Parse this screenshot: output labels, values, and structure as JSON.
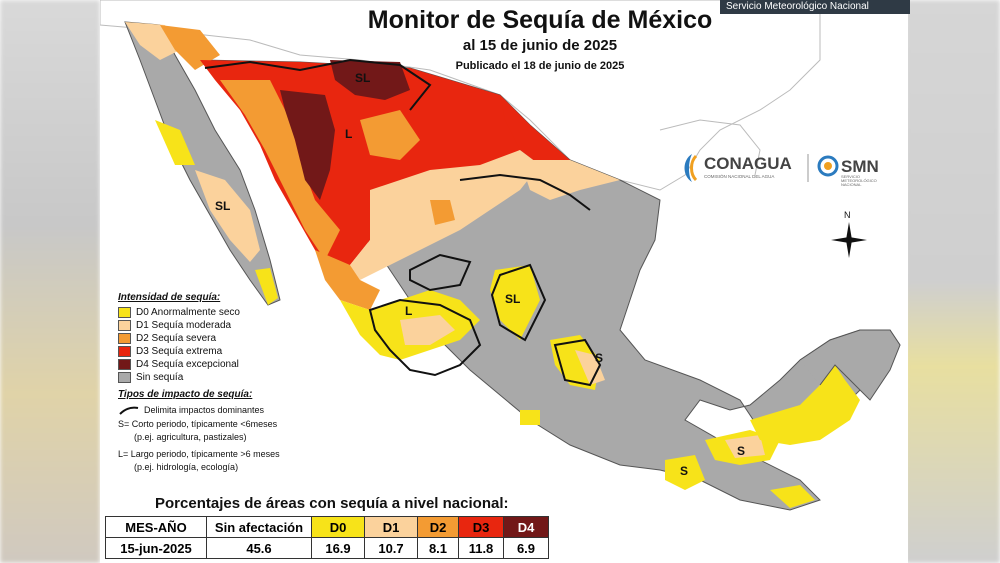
{
  "banner": "Servicio Meteorológico Nacional",
  "title": {
    "main": "Monitor de Sequía de México",
    "date": "al 15 de junio de 2025",
    "published": "Publicado el 18 de junio de 2025"
  },
  "colors": {
    "D0": "#f7e319",
    "D1": "#fbd29c",
    "D2": "#f39b33",
    "D3": "#e8260f",
    "D4": "#721818",
    "none": "#a9a9a9",
    "sea": "#ffffff"
  },
  "legend": {
    "intensity_title": "Intensidad de sequía:",
    "intensity_items": [
      {
        "code": "D0",
        "label": "D0 Anormalmente seco"
      },
      {
        "code": "D1",
        "label": "D1 Sequía moderada"
      },
      {
        "code": "D2",
        "label": "D2 Sequía severa"
      },
      {
        "code": "D3",
        "label": "D3 Sequía extrema"
      },
      {
        "code": "D4",
        "label": "D4 Sequía excepcional"
      },
      {
        "code": "none",
        "label": "Sin sequía"
      }
    ],
    "impact_title": "Tipos de impacto de sequía:",
    "impact_line": "Delimita impactos dominantes",
    "impact_s": "S= Corto periodo, típicamente <6meses",
    "impact_s_ex": "(p.ej. agricultura, pastizales)",
    "impact_l": "L= Largo periodo, típicamente >6 meses",
    "impact_l_ex": "(p.ej. hidrología, ecología)"
  },
  "map_labels": [
    "SL",
    "L",
    "SL",
    "SL",
    "L",
    "S",
    "S",
    "S"
  ],
  "logos": {
    "conagua": "CONAGUA",
    "conagua_sub": "COMISIÓN NACIONAL DEL AGUA",
    "smn": "SMN",
    "smn_sub1": "SERVICIO",
    "smn_sub2": "METEOROLÓGICO",
    "smn_sub3": "NACIONAL"
  },
  "compass_label": "N",
  "percentages": {
    "title": "Porcentajes de áreas con sequía a nivel nacional:",
    "headers": [
      "MES-AÑO",
      "Sin afectación",
      "D0",
      "D1",
      "D2",
      "D3",
      "D4"
    ],
    "row": [
      "15-jun-2025",
      "45.6",
      "16.9",
      "10.7",
      "8.1",
      "11.8",
      "6.9"
    ]
  }
}
